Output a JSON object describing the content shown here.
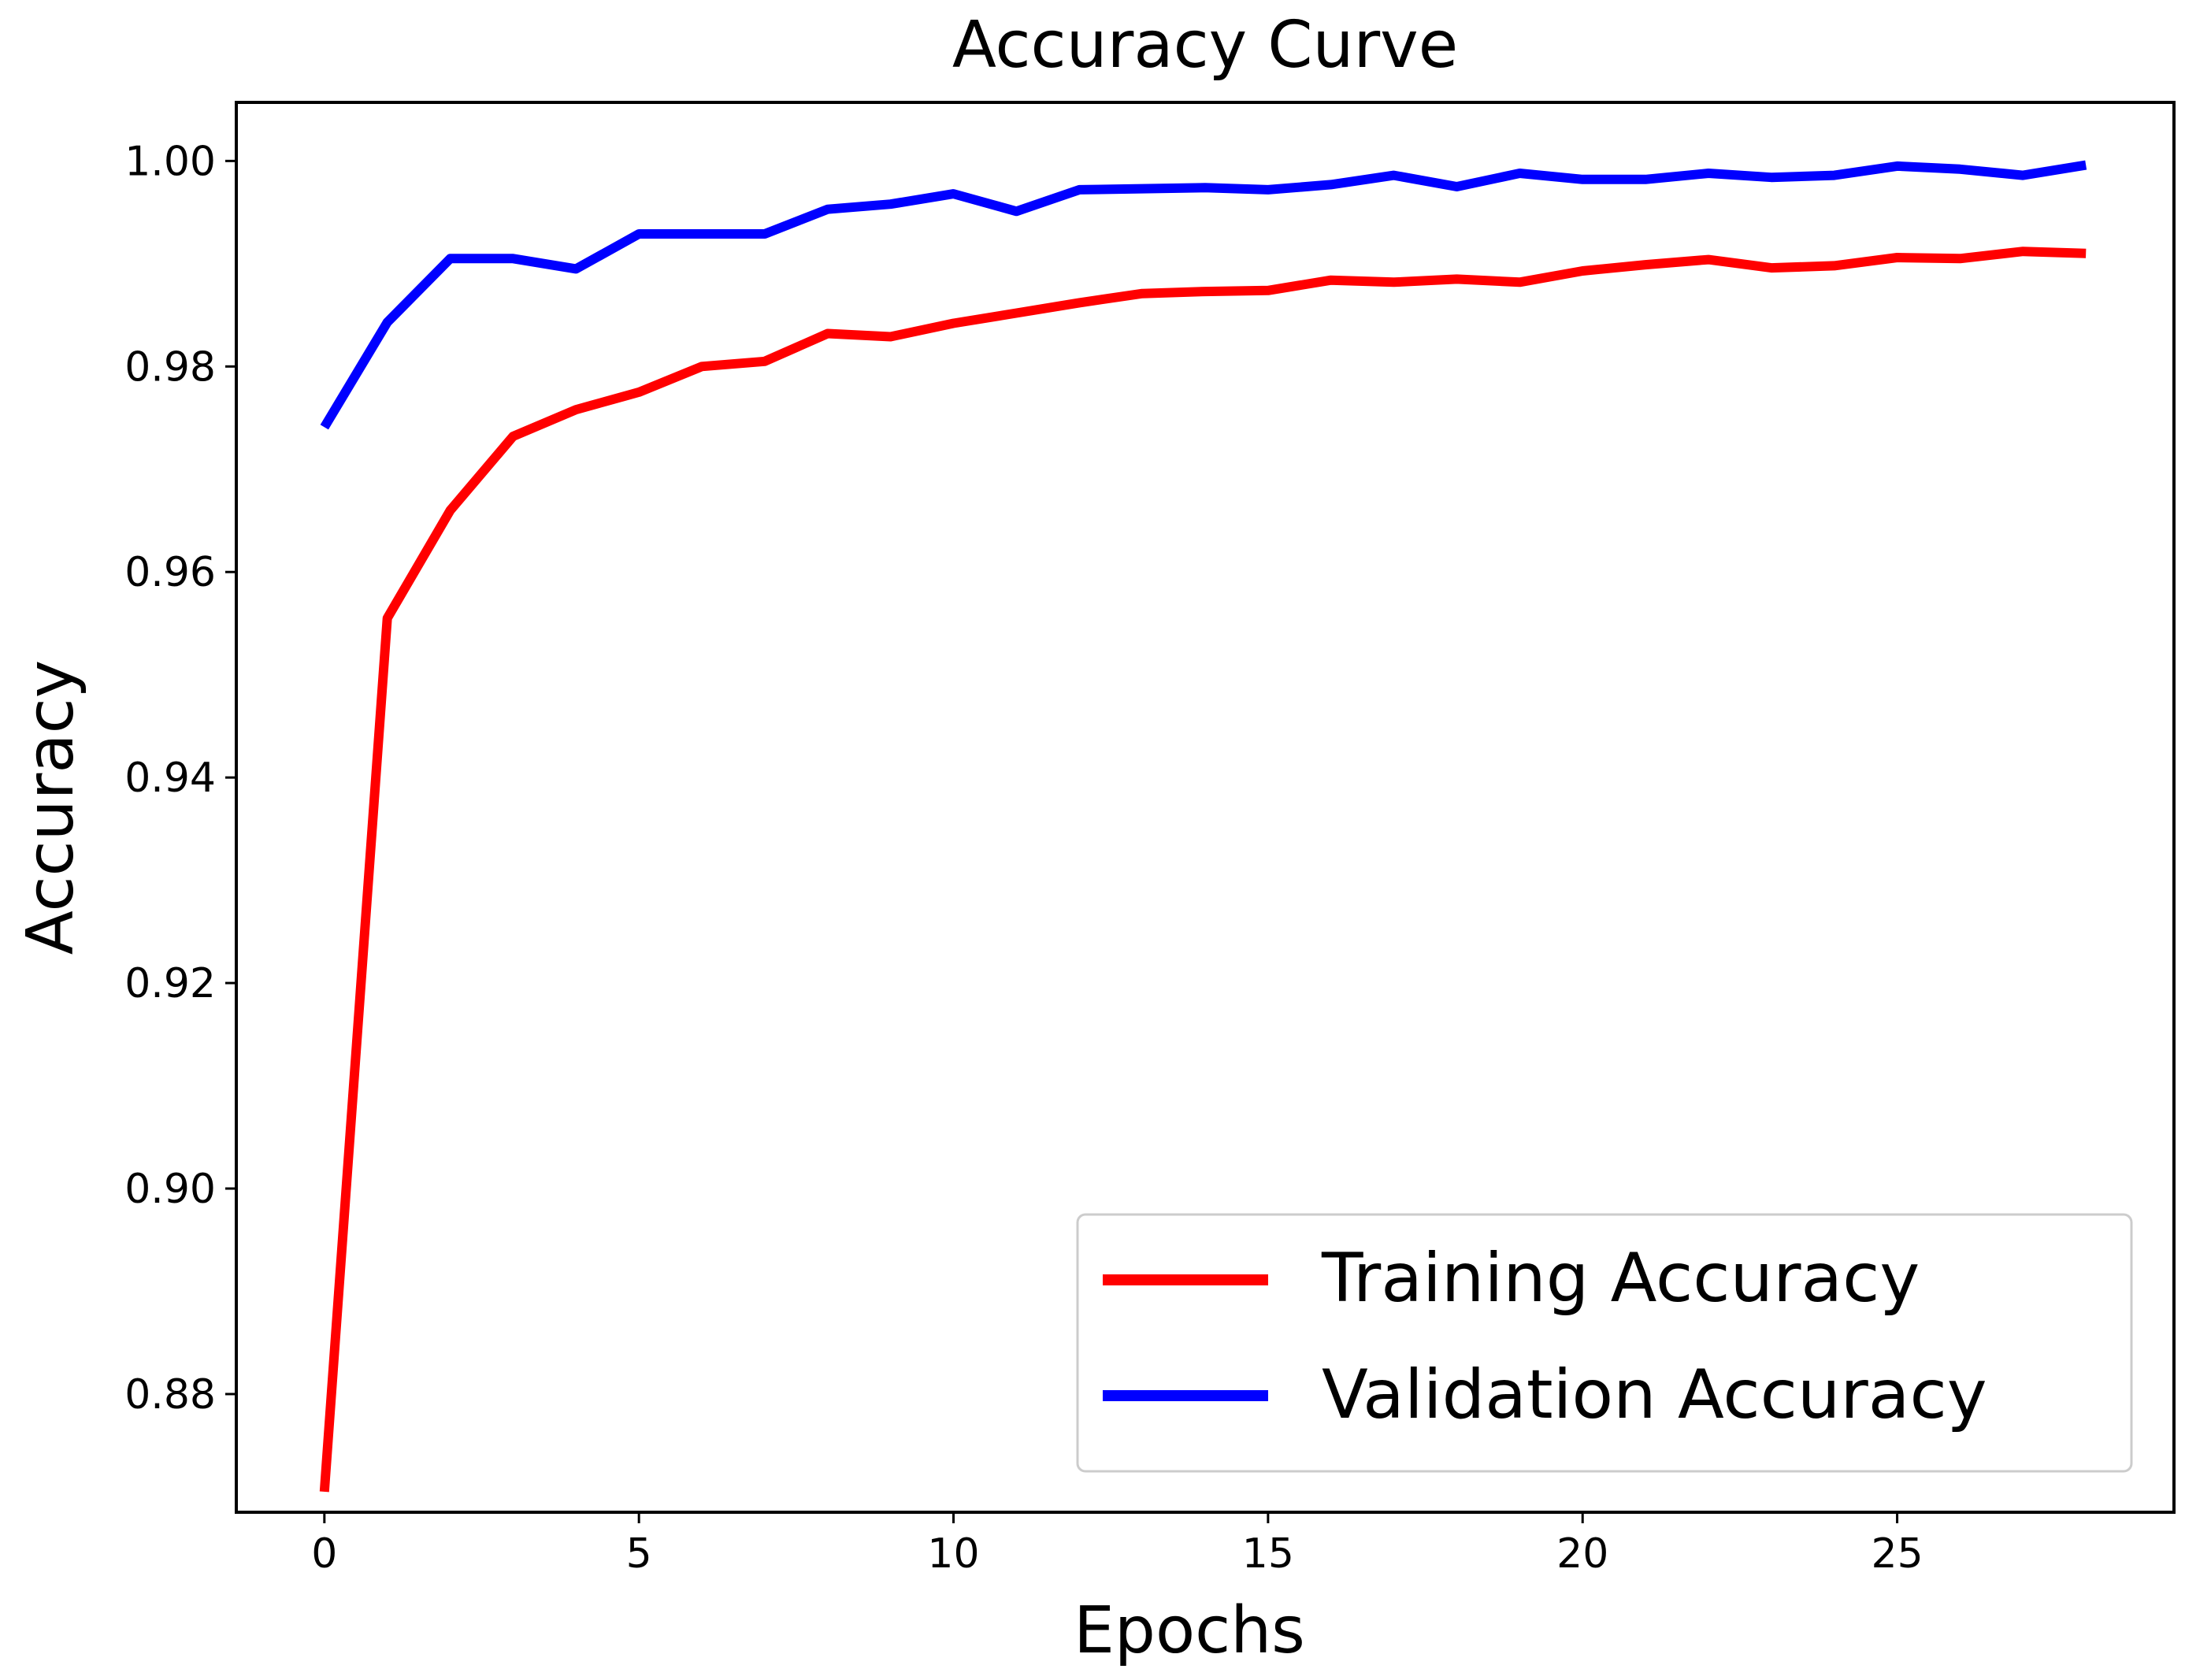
{
  "chart_data": {
    "type": "line",
    "title": "Accuracy Curve",
    "xlabel": "Epochs",
    "ylabel": "Accuracy",
    "xlim": [
      -1.4,
      29.4
    ],
    "ylim": [
      0.8685,
      1.0057
    ],
    "xticks": [
      0,
      5,
      10,
      15,
      20,
      25
    ],
    "yticks": [
      0.88,
      0.9,
      0.92,
      0.94,
      0.96,
      0.98,
      1.0
    ],
    "ytick_labels": [
      "0.88",
      "0.90",
      "0.92",
      "0.94",
      "0.96",
      "0.98",
      "1.00"
    ],
    "grid": false,
    "legend_position": "lower-right",
    "x": [
      0,
      1,
      2,
      3,
      4,
      5,
      6,
      7,
      8,
      9,
      10,
      11,
      12,
      13,
      14,
      15,
      16,
      17,
      18,
      19,
      20,
      21,
      22,
      23,
      24,
      25,
      26,
      27,
      28
    ],
    "series": [
      {
        "name": "Training Accuracy",
        "color": "#ff0000",
        "values": [
          0.8705,
          0.9555,
          0.966,
          0.9732,
          0.9758,
          0.9775,
          0.98,
          0.9805,
          0.9832,
          0.9829,
          0.9842,
          0.9852,
          0.9862,
          0.9871,
          0.9873,
          0.9874,
          0.9884,
          0.9882,
          0.9885,
          0.9882,
          0.9893,
          0.9899,
          0.9904,
          0.9896,
          0.9898,
          0.9906,
          0.9905,
          0.9912,
          0.991
        ]
      },
      {
        "name": "Validation Accuracy",
        "color": "#0000ff",
        "values": [
          0.9741,
          0.9843,
          0.9905,
          0.9905,
          0.9895,
          0.9929,
          0.9929,
          0.9929,
          0.9953,
          0.9958,
          0.9968,
          0.9951,
          0.9972,
          0.9973,
          0.9974,
          0.9972,
          0.9977,
          0.9986,
          0.9975,
          0.9988,
          0.9982,
          0.9982,
          0.9988,
          0.9984,
          0.9986,
          0.9995,
          0.9992,
          0.9986,
          0.9996
        ]
      }
    ]
  }
}
